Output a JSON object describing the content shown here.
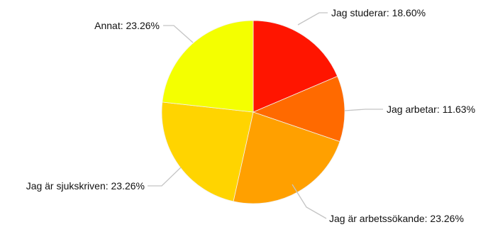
{
  "chart_data": {
    "type": "pie",
    "title": "",
    "legend": "none",
    "slices": [
      {
        "label": "Jag studerar: 18.60%",
        "category": "Jag studerar",
        "value": 18.6,
        "color": "#ff1500"
      },
      {
        "label": "Jag arbetar: 11.63%",
        "category": "Jag arbetar",
        "value": 11.63,
        "color": "#ff6a00"
      },
      {
        "label": "Jag är arbetssökande: 23.26%",
        "category": "Jag är arbetssökande",
        "value": 23.26,
        "color": "#ffa000"
      },
      {
        "label": "Jag är sjukskriven: 23.26%",
        "category": "Jag är sjukskriven",
        "value": 23.26,
        "color": "#ffd400"
      },
      {
        "label": "Annat: 23.26%",
        "category": "Annat",
        "value": 23.26,
        "color": "#f4ff00"
      }
    ]
  }
}
